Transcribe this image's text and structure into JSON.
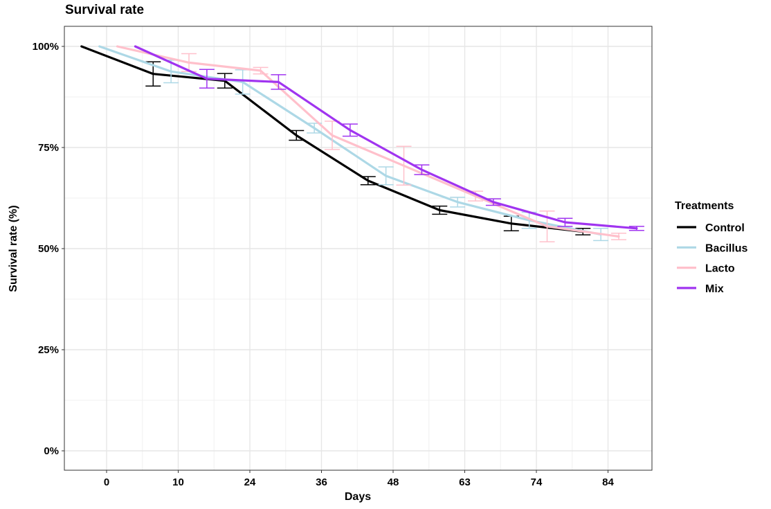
{
  "chart_data": {
    "type": "line",
    "title": "Survival rate",
    "xlabel": "Days",
    "ylabel": "Survival rate (%)",
    "categories": [
      "0",
      "10",
      "24",
      "36",
      "48",
      "63",
      "74",
      "84"
    ],
    "y_tick_labels": [
      "0%",
      "25%",
      "50%",
      "75%",
      "100%"
    ],
    "ylim": [
      0,
      100
    ],
    "grid": true,
    "legend": {
      "title": "Treatments",
      "placement": "right"
    },
    "series": [
      {
        "name": "Control",
        "color": "#000000",
        "x": [
          -0.35,
          0.65,
          1.65,
          2.65,
          3.65,
          4.65,
          5.65,
          6.65
        ],
        "y": [
          100,
          93.2,
          91.5,
          78.0,
          66.8,
          59.5,
          56.2,
          54.2
        ],
        "error": [
          0,
          3.0,
          1.8,
          1.2,
          1.0,
          1.0,
          1.8,
          0.8
        ]
      },
      {
        "name": "Bacillus",
        "color": "#add8e6",
        "x": [
          -0.1,
          0.9,
          1.9,
          2.9,
          3.9,
          4.9,
          5.9,
          6.9
        ],
        "y": [
          100,
          93.8,
          91.2,
          79.8,
          68.0,
          61.5,
          57.0,
          53.5
        ],
        "error": [
          0,
          2.8,
          3.0,
          1.2,
          2.2,
          1.2,
          2.0,
          1.5
        ]
      },
      {
        "name": "Lacto",
        "color": "#ffc0cb",
        "x": [
          0.15,
          1.15,
          2.15,
          3.15,
          4.15,
          5.15,
          6.15,
          7.15
        ],
        "y": [
          100,
          96.0,
          94.0,
          78.0,
          70.5,
          63.0,
          55.5,
          53.0
        ],
        "error": [
          0,
          2.2,
          0.8,
          3.5,
          4.8,
          1.2,
          3.8,
          0.8
        ]
      },
      {
        "name": "Mix",
        "color": "#a034f0",
        "x": [
          0.4,
          1.4,
          2.4,
          3.4,
          4.4,
          5.4,
          6.4,
          7.4
        ],
        "y": [
          100,
          92.0,
          91.2,
          79.3,
          69.5,
          61.5,
          56.5,
          55.0
        ],
        "error": [
          0,
          2.3,
          1.8,
          1.5,
          1.2,
          0.8,
          1.0,
          0.5
        ]
      }
    ]
  }
}
